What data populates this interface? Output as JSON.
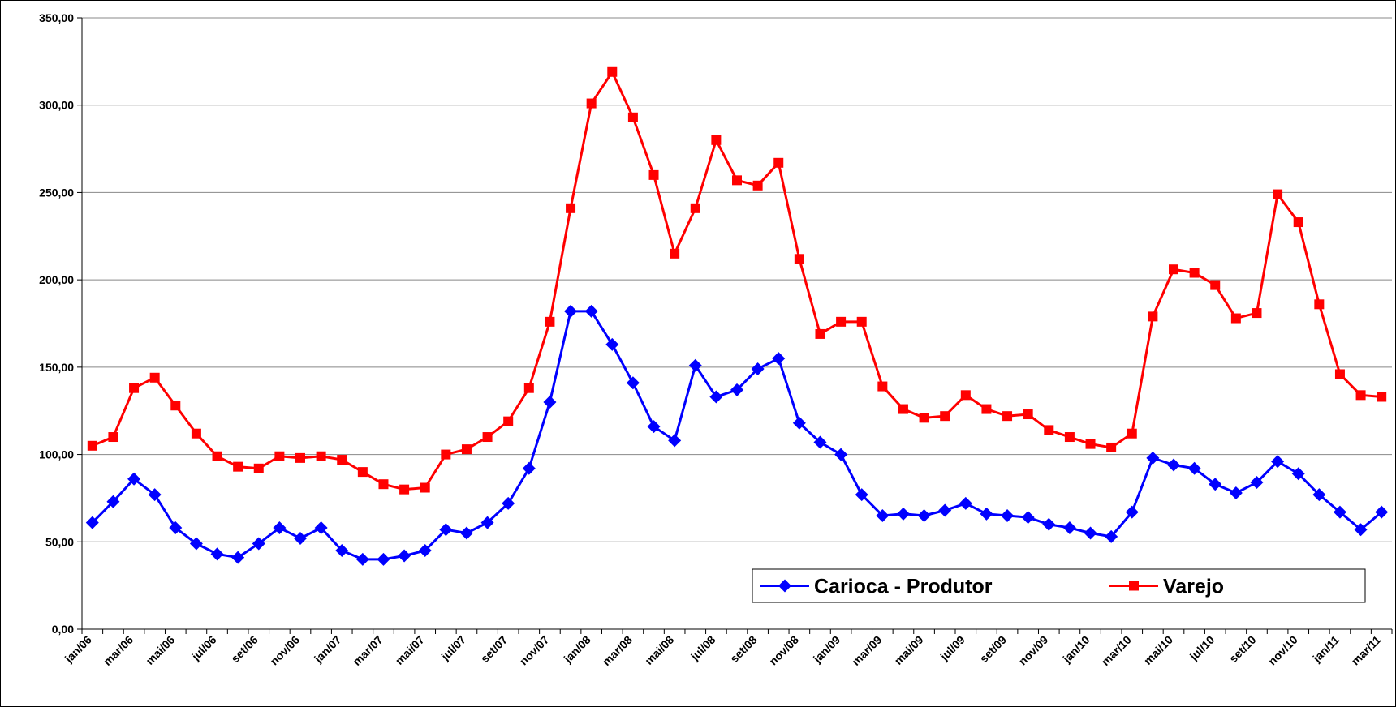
{
  "chart_data": {
    "type": "line",
    "categories": [
      "jan/06",
      null,
      "mar/06",
      null,
      "mai/06",
      null,
      "jul/06",
      null,
      "set/06",
      null,
      "nov/06",
      null,
      "jan/07",
      null,
      "mar/07",
      null,
      "mai/07",
      null,
      "jul/07",
      null,
      "set/07",
      null,
      "nov/07",
      null,
      "jan/08",
      null,
      "mar/08",
      null,
      "mai/08",
      null,
      "jul/08",
      null,
      "set/08",
      null,
      "nov/08",
      null,
      "jan/09",
      null,
      "mar/09",
      null,
      "mai/09",
      null,
      "jul/09",
      null,
      "set/09",
      null,
      "nov/09",
      null,
      "jan/10",
      null,
      "mar/10",
      null,
      "mai/10",
      null,
      "jul/10",
      null,
      "set/10",
      null,
      "nov/10",
      null,
      "jan/11",
      null,
      "mar/11"
    ],
    "series": [
      {
        "name": "Carioca - Produtor",
        "color": "#0000ff",
        "marker": "diamond",
        "values": [
          61,
          73,
          86,
          77,
          58,
          49,
          43,
          41,
          49,
          58,
          52,
          58,
          45,
          40,
          40,
          42,
          45,
          57,
          55,
          61,
          72,
          92,
          130,
          182,
          182,
          163,
          141,
          116,
          108,
          151,
          133,
          137,
          149,
          155,
          118,
          107,
          100,
          77,
          65,
          66,
          65,
          68,
          72,
          66,
          65,
          64,
          60,
          58,
          55,
          53,
          67,
          98,
          94,
          92,
          83,
          78,
          84,
          96,
          89,
          77,
          67,
          57,
          67
        ]
      },
      {
        "name": "Varejo",
        "color": "#ff0000",
        "marker": "square",
        "values": [
          105,
          110,
          138,
          144,
          128,
          112,
          99,
          93,
          92,
          99,
          98,
          99,
          97,
          90,
          83,
          80,
          81,
          100,
          103,
          110,
          119,
          138,
          176,
          241,
          301,
          319,
          293,
          260,
          215,
          241,
          280,
          257,
          254,
          267,
          212,
          169,
          176,
          176,
          139,
          126,
          121,
          122,
          134,
          126,
          122,
          123,
          114,
          110,
          106,
          104,
          112,
          179,
          206,
          204,
          197,
          178,
          181,
          249,
          233,
          186,
          146,
          134,
          133
        ]
      }
    ],
    "ylim": [
      0,
      350
    ],
    "yticks": [
      {
        "value": 0,
        "label": "0,00"
      },
      {
        "value": 50,
        "label": "50,00"
      },
      {
        "value": 100,
        "label": "100,00"
      },
      {
        "value": 150,
        "label": "150,00"
      },
      {
        "value": 200,
        "label": "200,00"
      },
      {
        "value": 250,
        "label": "250,00"
      },
      {
        "value": 300,
        "label": "300,00"
      },
      {
        "value": 350,
        "label": "350,00"
      }
    ],
    "grid": true,
    "legend": "bottom-right"
  }
}
